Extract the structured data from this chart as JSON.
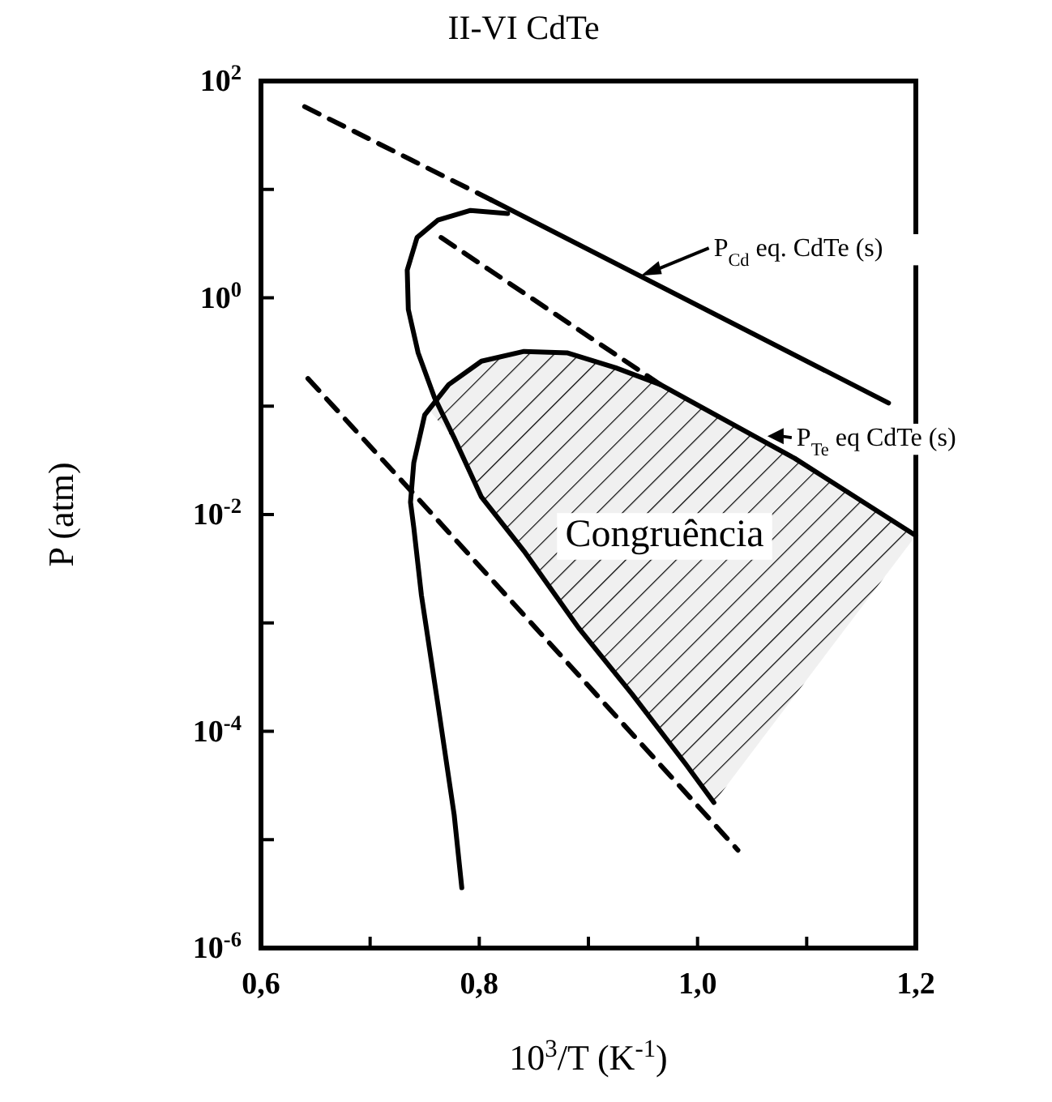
{
  "chart_data": {
    "type": "line",
    "title": "II-VI CdTe",
    "xlabel": "10$^{3}$/T (K$^{-1}$)",
    "ylabel": "P (atm)",
    "log": "y",
    "xlim": [
      0.6,
      1.2
    ],
    "ylim": [
      1e-06,
      100
    ],
    "xticks": [
      {
        "value": 0.6,
        "label": "0,6"
      },
      {
        "value": 0.7,
        "label": null
      },
      {
        "value": 0.8,
        "label": "0,8"
      },
      {
        "value": 0.9,
        "label": null
      },
      {
        "value": 1.0,
        "label": "1,0"
      },
      {
        "value": 1.1,
        "label": null
      },
      {
        "value": 1.2,
        "label": "1,2"
      }
    ],
    "yticks": [
      {
        "value": 1e-06,
        "label": "10$^{-6}$"
      },
      {
        "value": 1e-05,
        "label": null
      },
      {
        "value": 0.0001,
        "label": "10$^{-4}$"
      },
      {
        "value": 0.001,
        "label": null
      },
      {
        "value": 0.01,
        "label": "10$^{-2}$"
      },
      {
        "value": 0.1,
        "label": null
      },
      {
        "value": 1,
        "label": "10$^{0}$"
      },
      {
        "value": 10,
        "label": null
      },
      {
        "value": 100,
        "label": "10$^{2}$"
      }
    ],
    "series": [
      {
        "type": "area",
        "color": "#000000",
        "x": [
          0.755,
          0.78,
          0.8,
          0.84,
          0.88,
          0.925,
          0.966,
          1.015,
          1.09,
          1.2
        ],
        "values": [
          null,
          null,
          null,
          null,
          null,
          null,
          null,
          null,
          null,
          null
        ],
        "upper": [
          0.09,
          0.18,
          0.26,
          0.32,
          0.31,
          0.226,
          0.158,
          0.083,
          0.033,
          0.0064
        ],
        "lower": [
          0.09,
          0.045,
          0.015,
          0.0046,
          0.0012,
          0.00035,
          0.0001,
          2.2e-05,
          0.00022,
          0.0064
        ]
      },
      {
        "color": "#000000",
        "line_style": "dashed",
        "x": [
          0.64,
          0.811
        ],
        "values": [
          58,
          8
        ]
      },
      {
        "color": "#000000",
        "line_style": "solid",
        "x": [
          0.811,
          1.175
        ],
        "values": [
          8,
          0.107
        ]
      },
      {
        "color": "#000000",
        "line_style": "dashed",
        "x": [
          0.765,
          0.966
        ],
        "values": [
          3.6,
          0.158
        ]
      },
      {
        "color": "#000000",
        "line_style": "solid",
        "x": [
          1.2,
          1.089,
          0.966,
          0.925,
          0.881,
          0.841,
          0.802,
          0.772,
          0.75,
          0.74,
          0.737,
          0.74,
          0.747,
          0.762,
          0.777,
          0.784
        ],
        "values": [
          0.0064,
          0.033,
          0.158,
          0.226,
          0.31,
          0.32,
          0.26,
          0.158,
          0.083,
          0.03,
          0.013,
          0.0076,
          0.0018,
          0.00018,
          1.7e-05,
          3.6e-06
        ]
      },
      {
        "color": "#000000",
        "line_style": "dashed",
        "x": [
          0.643,
          0.732,
          1.037
        ],
        "values": [
          0.18,
          0.019,
          8e-06
        ]
      },
      {
        "color": "#000000",
        "line_style": "solid",
        "x": [
          0.826,
          0.792,
          0.762,
          0.743,
          0.734,
          0.735,
          0.744,
          0.759,
          0.777,
          0.802,
          0.841,
          0.891,
          0.94,
          0.989,
          1.015
        ],
        "values": [
          6.0,
          6.4,
          5.2,
          3.6,
          1.8,
          0.78,
          0.31,
          0.12,
          0.051,
          0.0145,
          0.0046,
          0.0009,
          0.00022,
          5e-05,
          2.2e-05
        ]
      }
    ],
    "annotations": [
      {
        "text": "P$_{Cd}$ eq. CdTe (s)",
        "x": 0.948,
        "y": 1.6
      },
      {
        "text": "P$_{Te}$ eq CdTe (s)",
        "x": 1.064,
        "y": 0.053
      },
      "Congruência"
    ]
  }
}
